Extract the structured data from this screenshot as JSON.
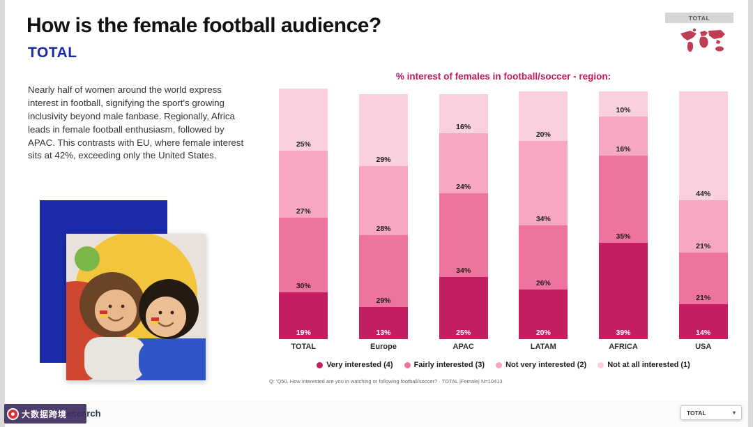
{
  "header": {
    "title": "How is the female football audience?",
    "subtitle": "TOTAL",
    "region_chip": "TOTAL"
  },
  "intro": "Nearly half of women around the world express interest in football, signifying the sport's growing inclusivity beyond male fanbase. Regionally, Africa leads in female football enthusiasm, followed by APAC. This contrasts with EU, where female interest sits at 42%, exceeding only the United States.",
  "chart_data": {
    "type": "bar",
    "stacked": true,
    "title": "% interest of females in football/soccer -  region:",
    "categories": [
      "TOTAL",
      "Europe",
      "APAC",
      "LATAM",
      "AFRICA",
      "USA"
    ],
    "series": [
      {
        "name": "Very interested (4)",
        "color": "#C41E63",
        "label_color": "#ffffff",
        "values": [
          19,
          13,
          25,
          20,
          39,
          14
        ]
      },
      {
        "name": "Fairly interested (3)",
        "color": "#EE739F",
        "label_color": "#1d1d1d",
        "values": [
          30,
          29,
          34,
          26,
          35,
          21
        ]
      },
      {
        "name": "Not very interested (2)",
        "color": "#F7A6C4",
        "label_color": "#1d1d1d",
        "values": [
          27,
          28,
          24,
          34,
          16,
          21
        ]
      },
      {
        "name": "Not at all interested (1)",
        "color": "#FAD0DD",
        "label_color": "#1d1d1d",
        "values": [
          25,
          29,
          16,
          20,
          10,
          44
        ]
      }
    ],
    "ylim": [
      0,
      100
    ],
    "value_suffix": "%",
    "legend_position": "bottom",
    "accent_colors": {
      "title_magenta": "#C01A5F",
      "subtitle_blue": "#1B2AA8"
    }
  },
  "footnote": "Q: 'Q50. How interested are you in watching or following football/soccer? · TOTAL |Female| N=10413",
  "footer": {
    "dropdown_label": "TOTAL",
    "logo_text": "Research",
    "watermark": "大数据跨境"
  }
}
